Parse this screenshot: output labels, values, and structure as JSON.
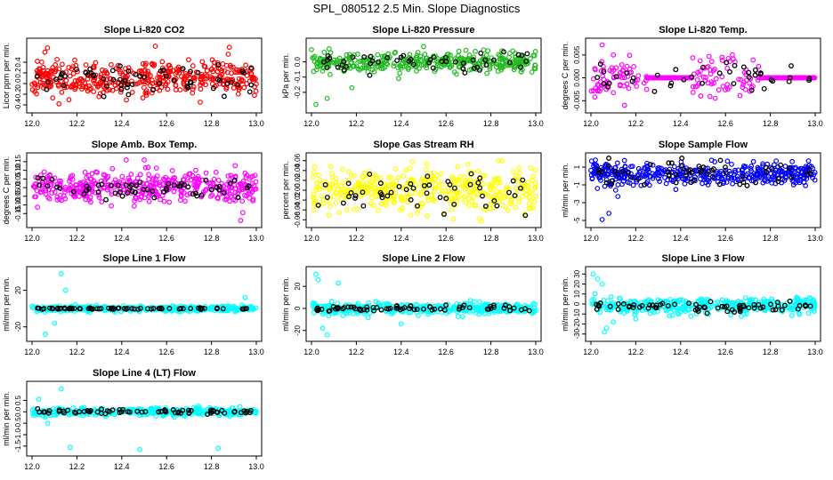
{
  "page": {
    "title": "SPL_080512  2.5 Min. Slope Diagnostics"
  },
  "chart_data": [
    {
      "type": "scatter",
      "title": "Slope Li-820 CO2",
      "ylabel": "Licor ppm per min.",
      "color": "#ff0000",
      "xlim": [
        12.0,
        13.0
      ],
      "ylim": [
        -0.45,
        0.75
      ],
      "x_ticks": [
        12.0,
        12.2,
        12.4,
        12.6,
        12.8,
        13.0
      ],
      "x_tick_labels": [
        "12.0",
        "12.2",
        "12.4",
        "12.6",
        "12.8",
        "13.0"
      ],
      "y_ticks": [
        -0.4,
        -0.2,
        0.0,
        0.2,
        0.4
      ],
      "y_tick_labels": [
        "-0.4",
        "-0.2",
        "0.0",
        "0.2",
        "0.4"
      ],
      "center": 0.1,
      "spread": 0.16,
      "black_spread": 0.15,
      "n_color": 420,
      "n_black": 60,
      "seed": 11,
      "outliers": [
        [
          12.55,
          0.7
        ],
        [
          12.88,
          0.68
        ],
        [
          12.12,
          -0.38
        ],
        [
          12.75,
          -0.35
        ]
      ]
    },
    {
      "type": "scatter",
      "title": "Slope Li-820 Pressure",
      "ylabel": "kPa per min.",
      "color": "#22bb22",
      "xlim": [
        12.0,
        13.0
      ],
      "ylim": [
        -0.3,
        0.12
      ],
      "x_ticks": [
        12.0,
        12.2,
        12.4,
        12.6,
        12.8,
        13.0
      ],
      "x_tick_labels": [
        "12.0",
        "12.2",
        "12.4",
        "12.6",
        "12.8",
        "13.0"
      ],
      "y_ticks": [
        -0.2,
        -0.1,
        0.0
      ],
      "y_tick_labels": [
        "-0.2",
        "-0.1",
        "0.0"
      ],
      "center": 0.0,
      "spread": 0.03,
      "black_spread": 0.03,
      "n_color": 380,
      "n_black": 50,
      "seed": 23,
      "outliers": [
        [
          12.02,
          -0.28
        ],
        [
          12.07,
          -0.24
        ],
        [
          12.18,
          -0.17
        ],
        [
          12.5,
          0.1
        ],
        [
          12.0,
          0.08
        ]
      ]
    },
    {
      "type": "scatter",
      "title": "Slope Li-820 Temp.",
      "ylabel": "degrees C per min.",
      "color": "#ff00ff",
      "xlim": [
        12.0,
        13.0
      ],
      "ylim": [
        -0.0065,
        0.0075
      ],
      "x_ticks": [
        12.0,
        12.2,
        12.4,
        12.6,
        12.8,
        13.0
      ],
      "x_tick_labels": [
        "12.0",
        "12.2",
        "12.4",
        "12.6",
        "12.8",
        "13.0"
      ],
      "y_ticks": [
        -0.005,
        0.0,
        0.005
      ],
      "y_tick_labels": [
        "-0.005",
        "0.000",
        "0.005"
      ],
      "center": 0.0,
      "spread": 0.0022,
      "black_spread": 0.0018,
      "n_color": 260,
      "n_black": 40,
      "seed": 37,
      "flat_line": true,
      "flat_segments": [
        [
          12.25,
          12.45
        ],
        [
          12.75,
          13.0
        ]
      ],
      "outliers": [
        [
          12.05,
          0.0072
        ],
        [
          12.15,
          -0.006
        ],
        [
          12.1,
          0.005
        ]
      ]
    },
    {
      "type": "scatter",
      "title": "Slope Amb. Box Temp.",
      "ylabel": "degrees C per min.",
      "color": "#ff00ff",
      "xlim": [
        12.0,
        13.0
      ],
      "ylim": [
        -0.2,
        0.17
      ],
      "x_ticks": [
        12.0,
        12.2,
        12.4,
        12.6,
        12.8,
        13.0
      ],
      "x_tick_labels": [
        "12.0",
        "12.2",
        "12.4",
        "12.6",
        "12.8",
        "13.0"
      ],
      "y_ticks": [
        -0.15,
        -0.1,
        -0.05,
        0.0,
        0.05,
        0.1,
        0.15
      ],
      "y_tick_labels": [
        "-0.15",
        "-0.10",
        "-0.05",
        "0.00",
        "0.05",
        "0.10",
        "0.15"
      ],
      "center": 0.0,
      "spread": 0.045,
      "black_spread": 0.03,
      "n_color": 420,
      "n_black": 60,
      "seed": 41,
      "outliers": [
        [
          12.42,
          0.16
        ],
        [
          12.5,
          0.16
        ],
        [
          12.93,
          -0.19
        ]
      ]
    },
    {
      "type": "scatter",
      "title": "Slope Gas Stream RH",
      "ylabel": "percent per min.",
      "color": "#ffff00",
      "xlim": [
        12.0,
        13.0
      ],
      "ylim": [
        -0.065,
        0.065
      ],
      "x_ticks": [
        12.0,
        12.2,
        12.4,
        12.6,
        12.8,
        13.0
      ],
      "x_tick_labels": [
        "12.0",
        "12.2",
        "12.4",
        "12.6",
        "12.8",
        "13.0"
      ],
      "y_ticks": [
        -0.06,
        -0.04,
        -0.02,
        0.0,
        0.02,
        0.04,
        0.06
      ],
      "y_tick_labels": [
        "-0.06",
        "-0.04",
        "-0.02",
        "0.00",
        "0.02",
        "0.04",
        "0.06"
      ],
      "center": 0.0,
      "spread": 0.022,
      "black_spread": 0.02,
      "n_color": 420,
      "n_black": 50,
      "seed": 53,
      "outliers": [
        [
          12.45,
          0.058
        ],
        [
          12.85,
          0.06
        ]
      ]
    },
    {
      "type": "scatter",
      "title": "Slope Sample Flow",
      "ylabel": "ml/min per min.",
      "color": "#0000ff",
      "xlim": [
        12.0,
        13.0
      ],
      "ylim": [
        -5.2,
        2.0
      ],
      "x_ticks": [
        12.0,
        12.2,
        12.4,
        12.6,
        12.8,
        13.0
      ],
      "x_tick_labels": [
        "12.0",
        "12.2",
        "12.4",
        "12.6",
        "12.8",
        "13.0"
      ],
      "y_ticks": [
        -5,
        -3,
        -1,
        1
      ],
      "y_tick_labels": [
        "-5",
        "-3",
        "-1",
        "1"
      ],
      "center": 0.2,
      "spread": 0.55,
      "black_spread": 0.8,
      "n_color": 420,
      "n_black": 60,
      "seed": 67,
      "outliers": [
        [
          12.02,
          1.8
        ],
        [
          12.05,
          -4.9
        ],
        [
          12.08,
          -4.2
        ],
        [
          12.12,
          -2.3
        ],
        [
          12.97,
          1.7
        ]
      ]
    },
    {
      "type": "scatter",
      "title": "Slope Line 1 Flow",
      "ylabel": "ml/min per min.",
      "color": "#00ffff",
      "xlim": [
        12.0,
        13.0
      ],
      "ylim": [
        -30,
        40
      ],
      "x_ticks": [
        12.0,
        12.2,
        12.4,
        12.6,
        12.8,
        13.0
      ],
      "x_tick_labels": [
        "12.0",
        "12.2",
        "12.4",
        "12.6",
        "12.8",
        "13.0"
      ],
      "y_ticks": [
        -20,
        20
      ],
      "y_tick_labels": [
        "-20",
        "20"
      ],
      "center": 0.0,
      "spread": 1.5,
      "black_spread": 0.3,
      "n_color": 380,
      "n_black": 70,
      "seed": 71,
      "outliers": [
        [
          12.13,
          38
        ],
        [
          12.15,
          20
        ],
        [
          12.06,
          -28
        ],
        [
          12.1,
          -16
        ],
        [
          12.95,
          12
        ]
      ]
    },
    {
      "type": "scatter",
      "title": "Slope Line 2 Flow",
      "ylabel": "ml/min per min.",
      "color": "#00ffff",
      "xlim": [
        12.0,
        13.0
      ],
      "ylim": [
        -25,
        33
      ],
      "x_ticks": [
        12.0,
        12.2,
        12.4,
        12.6,
        12.8,
        13.0
      ],
      "x_tick_labels": [
        "12.0",
        "12.2",
        "12.4",
        "12.6",
        "12.8",
        "13.0"
      ],
      "y_ticks": [
        -20,
        0,
        20
      ],
      "y_tick_labels": [
        "-20",
        "0",
        "20"
      ],
      "center": 0.0,
      "spread": 2.5,
      "black_spread": 1.5,
      "n_color": 380,
      "n_black": 70,
      "seed": 83,
      "outliers": [
        [
          12.02,
          31
        ],
        [
          12.03,
          26
        ],
        [
          12.12,
          23
        ],
        [
          12.07,
          -24
        ],
        [
          12.05,
          -18
        ],
        [
          12.4,
          -14
        ]
      ]
    },
    {
      "type": "scatter",
      "title": "Slope Line 3 Flow",
      "ylabel": "ml/min per min.",
      "color": "#00ffff",
      "xlim": [
        12.0,
        13.0
      ],
      "ylim": [
        -32,
        32
      ],
      "x_ticks": [
        12.0,
        12.2,
        12.4,
        12.6,
        12.8,
        13.0
      ],
      "x_tick_labels": [
        "12.0",
        "12.2",
        "12.4",
        "12.6",
        "12.8",
        "13.0"
      ],
      "y_ticks": [
        -30,
        -20,
        -10,
        0,
        10,
        20,
        30
      ],
      "y_tick_labels": [
        "-30",
        "-20",
        "-10",
        "0",
        "10",
        "20",
        "30"
      ],
      "center": -2.0,
      "spread": 4.0,
      "black_spread": 3.0,
      "n_color": 400,
      "n_black": 70,
      "seed": 97,
      "outliers": [
        [
          12.01,
          30
        ],
        [
          12.03,
          25
        ],
        [
          12.05,
          20
        ],
        [
          12.06,
          -28
        ],
        [
          12.07,
          -24
        ],
        [
          12.1,
          -18
        ],
        [
          12.2,
          -15
        ],
        [
          12.35,
          -12
        ]
      ]
    },
    {
      "type": "scatter",
      "title": "Slope Line 4 (LT) Flow",
      "ylabel": "ml/min per min.",
      "color": "#00ffff",
      "xlim": [
        12.0,
        13.0
      ],
      "ylim": [
        -1.7,
        1.1
      ],
      "x_ticks": [
        12.0,
        12.2,
        12.4,
        12.6,
        12.8,
        13.0
      ],
      "x_tick_labels": [
        "12.0",
        "12.2",
        "12.4",
        "12.6",
        "12.8",
        "13.0"
      ],
      "y_ticks": [
        -1.5,
        -1.0,
        -0.5,
        0.0,
        0.5
      ],
      "y_tick_labels": [
        "-1.5",
        "-1.0",
        "-0.5",
        "0.0",
        "0.5"
      ],
      "center": 0.0,
      "spread": 0.09,
      "black_spread": 0.05,
      "n_color": 380,
      "n_black": 70,
      "seed": 103,
      "outliers": [
        [
          12.13,
          1.0
        ],
        [
          12.03,
          0.55
        ],
        [
          12.07,
          -0.5
        ],
        [
          12.17,
          -1.55
        ],
        [
          12.48,
          -1.65
        ],
        [
          12.83,
          -1.6
        ]
      ]
    }
  ]
}
